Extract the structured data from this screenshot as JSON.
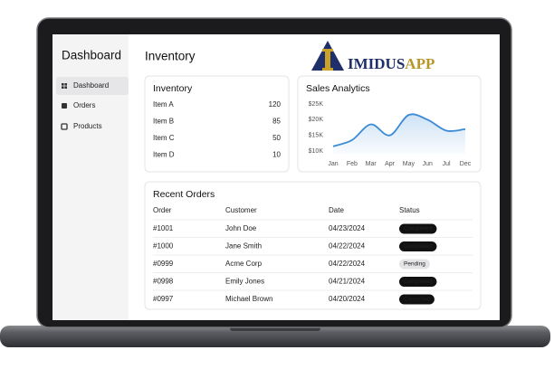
{
  "sidebar": {
    "title": "Dashboard",
    "nav": [
      "Dashboard",
      "Orders",
      "Products"
    ]
  },
  "main": {
    "title": "Inventory"
  },
  "logo": {
    "text_main": "IMIDUS",
    "text_accent": "APP"
  },
  "inventory": {
    "title": "Inventory",
    "items": [
      {
        "name": "Item A",
        "qty": 120
      },
      {
        "name": "Item B",
        "qty": 85
      },
      {
        "name": "Item C",
        "qty": 50
      },
      {
        "name": "Item D",
        "qty": 10
      }
    ]
  },
  "sales_analytics": {
    "chart_data": {
      "type": "line",
      "title": "Sales Analytics",
      "categories": [
        "Jan",
        "Feb",
        "Mar",
        "Apr",
        "May",
        "Jun",
        "Jul",
        "Dec"
      ],
      "values": [
        11500,
        13500,
        18500,
        15000,
        21500,
        20000,
        16500,
        17000
      ],
      "color": "#3a8ad6",
      "ylim": [
        10000,
        25000
      ],
      "yticks": [
        {
          "value": 10000,
          "label": "$10K"
        },
        {
          "value": 15000,
          "label": "$15K"
        },
        {
          "value": 20000,
          "label": "$20K"
        },
        {
          "value": 25000,
          "label": "$25K"
        }
      ]
    }
  },
  "orders": {
    "title": "Recent Orders",
    "columns": [
      "Order",
      "Customer",
      "Date",
      "Status"
    ],
    "rows": [
      [
        "#1001",
        "John Doe",
        "04/23/2024",
        "Completed"
      ],
      [
        "#1000",
        "Jane Smith",
        "04/22/2024",
        "Completed"
      ],
      [
        "#0999",
        "Acme Corp",
        "04/22/2024",
        "Pending"
      ],
      [
        "#0998",
        "Emily Jones",
        "04/21/2024",
        "Completed"
      ],
      [
        "#0997",
        "Michael Brown",
        "04/20/2024",
        "Cancelled"
      ]
    ],
    "status_colors": [
      "#111111",
      "#111111",
      "#e4e4e7",
      "#111111",
      "#111111"
    ]
  }
}
